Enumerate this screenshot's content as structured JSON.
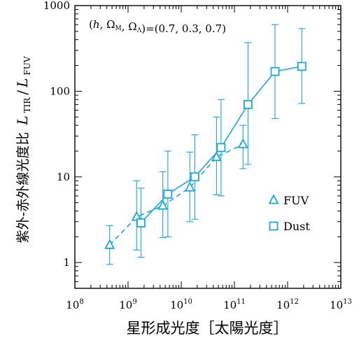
{
  "chart_data": {
    "type": "line",
    "xlabel": "星形成光度［太陽光度］",
    "ylabel": {
      "prefix": "紫外-赤外線光度比",
      "num": "L",
      "num_sub": "TIR",
      "den": "L",
      "den_sub": "FUV"
    },
    "annotation": "(h, Ω_M, Ω_Λ)=(0.7, 0.3, 0.7)",
    "xscale": "log",
    "yscale": "log",
    "xlim": [
      100000000.0,
      10000000000000.0
    ],
    "ylim": [
      0.5,
      1000
    ],
    "x_ticks": [
      {
        "value": 100000000.0,
        "base": "10",
        "exp": "8"
      },
      {
        "value": 1000000000.0,
        "base": "10",
        "exp": "9"
      },
      {
        "value": 10000000000.0,
        "base": "10",
        "exp": "10"
      },
      {
        "value": 100000000000.0,
        "base": "10",
        "exp": "11"
      },
      {
        "value": 1000000000000.0,
        "base": "10",
        "exp": "12"
      },
      {
        "value": 10000000000000.0,
        "base": "10",
        "exp": "13"
      }
    ],
    "y_ticks": [
      {
        "value": 1,
        "label": "1"
      },
      {
        "value": 10,
        "label": "10"
      },
      {
        "value": 100,
        "label": "100"
      },
      {
        "value": 1000,
        "label": "1000"
      }
    ],
    "grid": false,
    "legend_position": "lower-right",
    "color": "#1aa7d9",
    "series": [
      {
        "name": "FUV",
        "marker": "triangle",
        "linestyle": "dashed",
        "points": [
          {
            "x": 450000000.0,
            "y": 1.6,
            "ylo": 0.95,
            "yhi": 2.7
          },
          {
            "x": 1450000000.0,
            "y": 3.4,
            "ylo": 1.4,
            "yhi": 9.0
          },
          {
            "x": 4500000000.0,
            "y": 4.6,
            "ylo": 1.95,
            "yhi": 11.5
          },
          {
            "x": 14500000000.0,
            "y": 7.5,
            "ylo": 3.0,
            "yhi": 19.5
          },
          {
            "x": 46000000000.0,
            "y": 17.0,
            "ylo": 6.2,
            "yhi": 50.0
          },
          {
            "x": 145000000000.0,
            "y": 24.0,
            "ylo": 12.5,
            "yhi": 40.0
          }
        ]
      },
      {
        "name": "Dust",
        "marker": "square",
        "linestyle": "solid",
        "points": [
          {
            "x": 1750000000.0,
            "y": 2.9,
            "ylo": 1.15,
            "yhi": 7.4
          },
          {
            "x": 5600000000.0,
            "y": 6.3,
            "ylo": 2.0,
            "yhi": 20.0
          },
          {
            "x": 18000000000.0,
            "y": 10.0,
            "ylo": 3.2,
            "yhi": 31.0
          },
          {
            "x": 56000000000.0,
            "y": 22.0,
            "ylo": 6.0,
            "yhi": 80.0
          },
          {
            "x": 180000000000.0,
            "y": 70.0,
            "ylo": 14.0,
            "yhi": 370.0
          },
          {
            "x": 580000000000.0,
            "y": 170.0,
            "ylo": 48.0,
            "yhi": 600.0
          },
          {
            "x": 1850000000000.0,
            "y": 195.0,
            "ylo": 72.0,
            "yhi": 540.0
          }
        ]
      }
    ]
  }
}
